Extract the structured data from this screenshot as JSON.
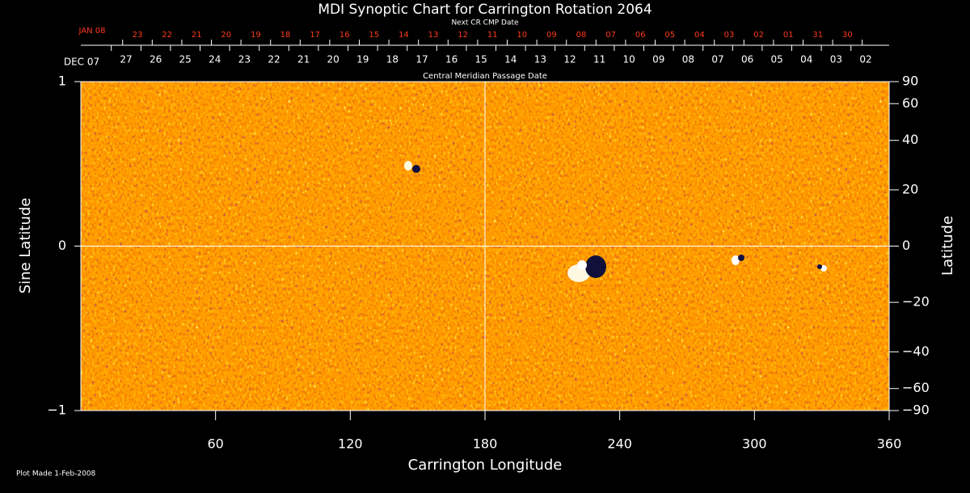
{
  "chart_data": {
    "type": "synoptic-map",
    "title": "MDI Synoptic Chart for Carrington Rotation 2064",
    "x_label": "Carrington Longitude",
    "y_label": "Sine Latitude",
    "y2_label": "Latitude",
    "xlim": [
      0,
      360
    ],
    "xticks": [
      60,
      120,
      180,
      240,
      300,
      360
    ],
    "ylim": [
      -1,
      1
    ],
    "yticks": [
      {
        "value": -1,
        "label": "−1"
      },
      0,
      1
    ],
    "y2lim": [
      -90,
      90
    ],
    "y2scale": "sine",
    "y2ticks": [
      {
        "value": -90,
        "label": "−90"
      },
      {
        "value": -60,
        "label": "−60"
      },
      {
        "value": -40,
        "label": "−40"
      },
      {
        "value": -20,
        "label": "−20"
      },
      0,
      20,
      40,
      60,
      90
    ],
    "top_axis": {
      "label": "Next CR CMP Date",
      "color": "#ff3a1a",
      "ticks": [
        "JAN 08",
        "23",
        "22",
        "21",
        "20",
        "19",
        "18",
        "17",
        "16",
        "15",
        "14",
        "13",
        "12",
        "11",
        "10",
        "09",
        "08",
        "07",
        "06",
        "05",
        "04",
        "03",
        "02",
        "01",
        "31",
        "30"
      ]
    },
    "second_axis": {
      "label": "Central Meridian Passage Date",
      "ticks": [
        "DEC 07",
        "27",
        "26",
        "25",
        "24",
        "23",
        "22",
        "21",
        "20",
        "19",
        "18",
        "17",
        "16",
        "15",
        "14",
        "13",
        "12",
        "11",
        "10",
        "09",
        "08",
        "07",
        "06",
        "05",
        "04",
        "03",
        "02"
      ]
    },
    "note": "Plot Made  1-Feb-2008"
  }
}
